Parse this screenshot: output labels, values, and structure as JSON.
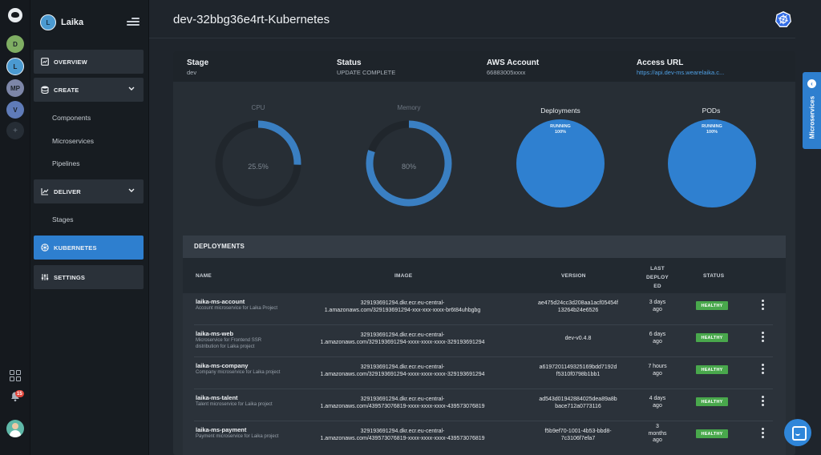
{
  "rail": {
    "avatars": [
      {
        "label": "D",
        "color": "#7fae63"
      },
      {
        "label": "L",
        "color": "#4b9ad1"
      },
      {
        "label": "MP",
        "color": "#7d86a8"
      },
      {
        "label": "V",
        "color": "#5f7bb8"
      }
    ],
    "add_label": "+",
    "notification_count": "15"
  },
  "sidebar": {
    "avatar_letter": "L",
    "account_name": "Laika",
    "overview_label": "OVERVIEW",
    "create_label": "CREATE",
    "create_items": [
      "Components",
      "Microservices",
      "Pipelines"
    ],
    "deliver_label": "DELIVER",
    "deliver_items": [
      "Stages"
    ],
    "kubernetes_label": "KUBERNETES",
    "settings_label": "SETTINGS"
  },
  "header": {
    "title": "dev-32bbg36e4rt-Kubernetes"
  },
  "cluster_info": {
    "stage_label": "Stage",
    "stage_value": "dev",
    "status_label": "Status",
    "status_value": "UPDATE COMPLETE",
    "aws_label": "AWS Account",
    "aws_value": "66883005xxxx",
    "access_label": "Access URL",
    "access_value": "https://api.dev-ms.wearelaika.c..."
  },
  "metrics": {
    "cpu": {
      "label": "CPU",
      "value_text": "25.5%",
      "value": 25.5
    },
    "memory": {
      "label": "Memory",
      "value_text": "80%",
      "value": 80
    },
    "deployments": {
      "label": "Deployments",
      "state": "RUNNING",
      "percent": "100%"
    },
    "pods": {
      "label": "PODs",
      "state": "RUNNING",
      "percent": "100%"
    }
  },
  "deployments": {
    "title": "DEPLOYMENTS",
    "columns": {
      "name": "NAME",
      "image": "IMAGE",
      "version": "VERSION",
      "last_deployed": [
        "LAST",
        "DEPLOY",
        "ED"
      ],
      "status": "STATUS"
    },
    "rows": [
      {
        "name": "laika-ms-account",
        "desc": "Account microservice for Laika Project",
        "image": [
          "329193691294.dkr.ecr.eu-central-",
          "1.amazonaws.com/329193691294-xxx-xxx-xxxx-br6t84uhbgbg"
        ],
        "version": [
          "ae475d24cc3d208aa1acf05454f",
          "13264b24e6526"
        ],
        "deployed": [
          "3 days",
          "ago"
        ],
        "status": "HEALTHY"
      },
      {
        "name": "laika-ms-web",
        "desc": "Microservice for Frontend SSR distribution for Laika project",
        "image": [
          "329193691294.dkr.ecr.eu-central-",
          "1.amazonaws.com/329193691294-xxxx-xxxx-xxxx-329193691294"
        ],
        "version": [
          "dev-v0.4.8",
          ""
        ],
        "deployed": [
          "6 days",
          "ago"
        ],
        "status": "HEALTHY"
      },
      {
        "name": "laika-ms-company",
        "desc": "Company microservice for Laika project",
        "image": [
          "329193691294.dkr.ecr.eu-central-",
          "1.amazonaws.com/329193691294-xxxx-xxxx-xxxx-329193691294"
        ],
        "version": [
          "a6197201149325169bdd7192d",
          "f5310f0798b1bb1"
        ],
        "deployed": [
          "7 hours",
          "ago"
        ],
        "status": "HEALTHY"
      },
      {
        "name": "laika-ms-talent",
        "desc": "Talent microservice for Laika project",
        "image": [
          "329193691294.dkr.ecr.eu-central-",
          "1.amazonaws.com/439573076819-xxxx-xxxx-xxxx-439573076819"
        ],
        "version": [
          "ad543d01942884025dea89a8b",
          "bace712a0773116"
        ],
        "deployed": [
          "4 days",
          "ago"
        ],
        "status": "HEALTHY"
      },
      {
        "name": "laika-ms-payment",
        "desc": "Payment microservice for Laika project",
        "image": [
          "329193691294.dkr.ecr.eu-central-",
          "1.amazonaws.com/439573076819-xxxx-xxxx-xxxx-439573076819"
        ],
        "version": [
          "f5b9ef70-1001-4b53-bbd8-",
          "7c3106f7efa7"
        ],
        "deployed": [
          "3",
          "months",
          "ago"
        ],
        "status": "HEALTHY"
      }
    ]
  },
  "side_tab": {
    "label": "Microservices"
  },
  "colors": {
    "accent": "#2e7fcf",
    "healthy": "#49a84c",
    "gauge_fill": "#3a7fc2",
    "pie_fill": "#2f80d0"
  }
}
